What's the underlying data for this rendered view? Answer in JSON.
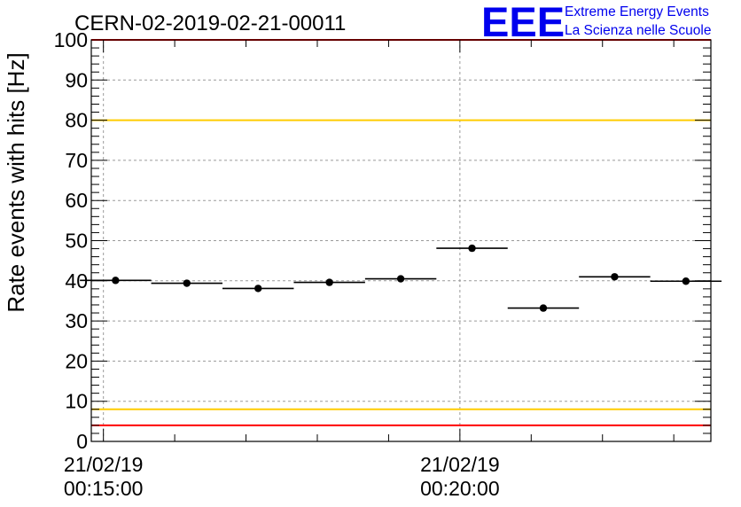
{
  "chart_data": {
    "type": "scatter",
    "title": "CERN-02-2019-02-21-00011",
    "xlabel": "",
    "ylabel": "Rate events with hits [Hz]",
    "ylim": [
      0,
      100
    ],
    "x_range_minutes": [
      14.83,
      23.52
    ],
    "x_ticks": [
      {
        "minute": 15,
        "label_line1": "21/02/19",
        "label_line2": "00:15:00"
      },
      {
        "minute": 20,
        "label_line1": "21/02/19",
        "label_line2": "00:20:00"
      }
    ],
    "y_ticks": [
      0,
      10,
      20,
      30,
      40,
      50,
      60,
      70,
      80,
      90,
      100
    ],
    "grid": true,
    "bin_width_minutes": 1,
    "series": [
      {
        "points": [
          {
            "x_minute": 15.17,
            "y": 40.1
          },
          {
            "x_minute": 16.17,
            "y": 39.4
          },
          {
            "x_minute": 17.17,
            "y": 38.1
          },
          {
            "x_minute": 18.17,
            "y": 39.6
          },
          {
            "x_minute": 19.17,
            "y": 40.5
          },
          {
            "x_minute": 20.17,
            "y": 48.1
          },
          {
            "x_minute": 21.17,
            "y": 33.2
          },
          {
            "x_minute": 22.17,
            "y": 41.0
          },
          {
            "x_minute": 23.17,
            "y": 39.9
          }
        ]
      }
    ],
    "reference_lines": [
      {
        "y": 100,
        "color": "#ff0000"
      },
      {
        "y": 80,
        "color": "#ffcc00"
      },
      {
        "y": 8,
        "color": "#ffcc00"
      },
      {
        "y": 4,
        "color": "#ff0000"
      }
    ]
  },
  "logo": {
    "text": "EEE",
    "line1": "Extreme Energy Events",
    "line2": "La Scienza nelle Scuole",
    "color": "#0000ee"
  }
}
